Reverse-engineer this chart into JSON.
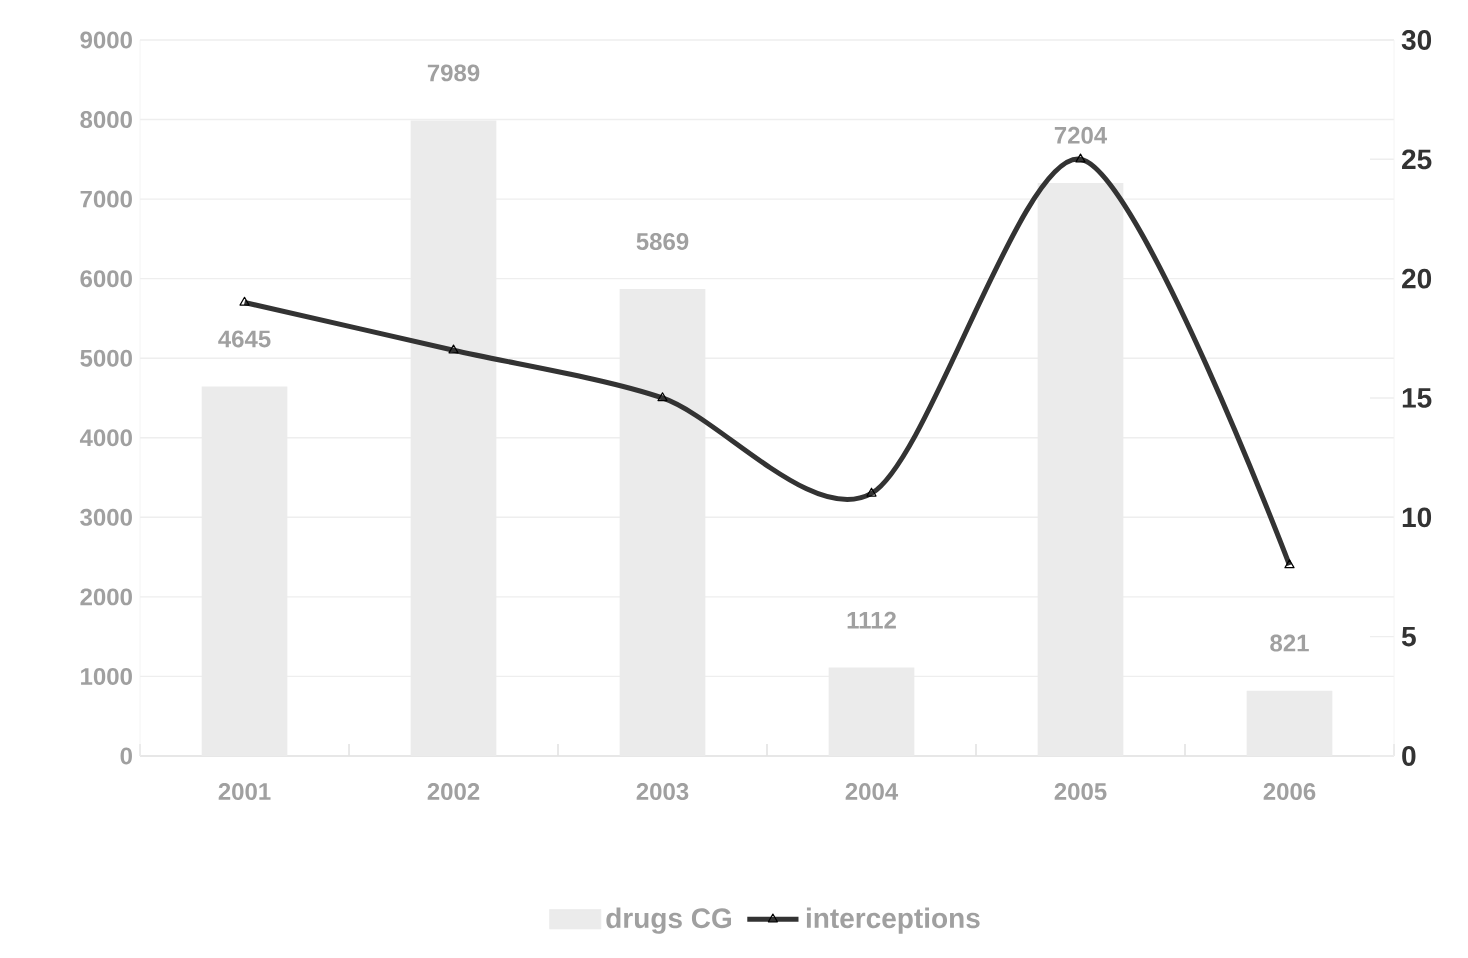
{
  "chart_data": {
    "type": "bar",
    "categories": [
      "2001",
      "2002",
      "2003",
      "2004",
      "2005",
      "2006"
    ],
    "series": [
      {
        "name": "drugs CG",
        "color": "#ebebeb",
        "values": [
          4645,
          7989,
          5869,
          1112,
          7204,
          821
        ],
        "value_labels": [
          "4645",
          "7989",
          "5869",
          "1112",
          "7204",
          "821"
        ]
      },
      {
        "name": "interceptions",
        "type": "line",
        "axis": "y2",
        "color": "#333333",
        "values": [
          19,
          17,
          15,
          11,
          25,
          8
        ],
        "marker": "triangle",
        "line_style": "solid"
      }
    ],
    "ylim": [
      0,
      9000
    ],
    "yticks": [
      0,
      1000,
      2000,
      3000,
      4000,
      5000,
      6000,
      7000,
      8000,
      9000
    ],
    "y2lim": [
      0,
      30
    ],
    "y2ticks": [
      0,
      5,
      10,
      15,
      20,
      25,
      30
    ],
    "grid": "y",
    "legend": "bottom"
  }
}
